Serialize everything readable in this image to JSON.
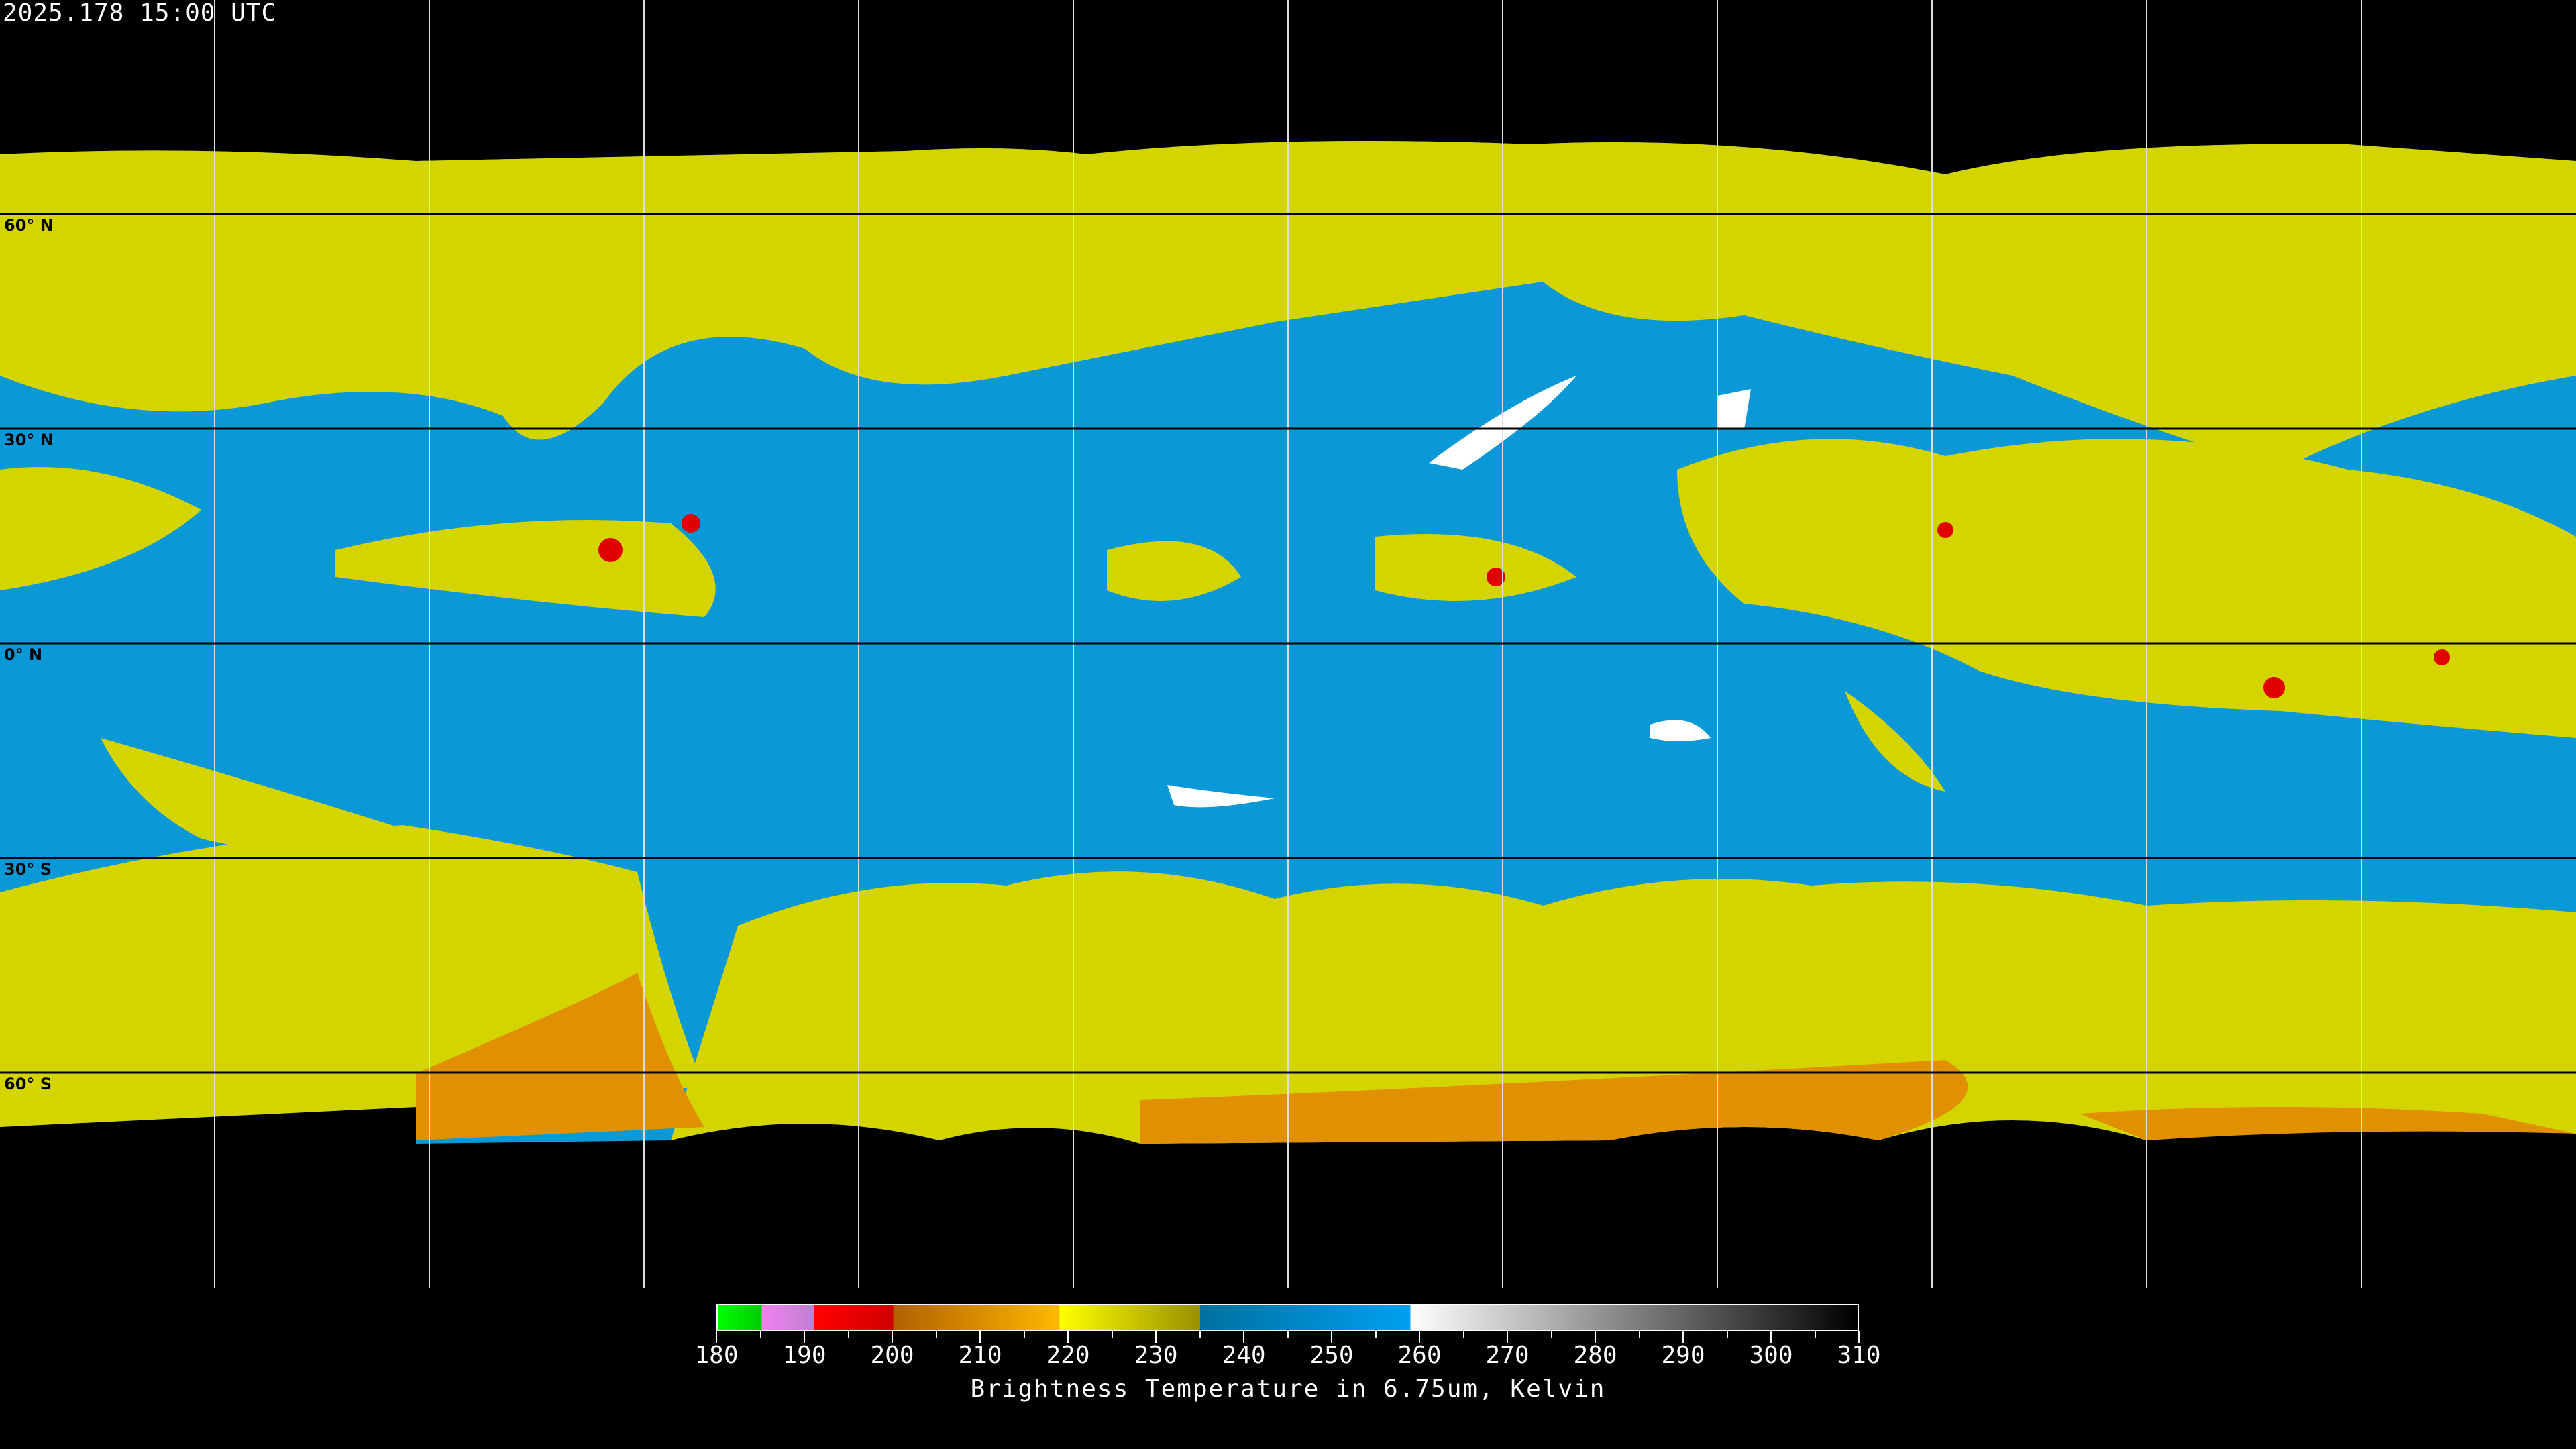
{
  "header": {
    "timestamp": "2025.178 15:00 UTC"
  },
  "map": {
    "projection": "equirectangular",
    "latitude_labels": [
      "60° N",
      "30° N",
      "0° N",
      "30° S",
      "60° S"
    ],
    "colors": {
      "background_space": "#000000",
      "warm_moist": "#0a98d6",
      "dry_yellow": "#d4d400",
      "cold_orange": "#e09000",
      "deep_red": "#e00000",
      "very_warm": "#ffffff"
    }
  },
  "colorbar": {
    "min": 180,
    "max": 310,
    "tick_labels": [
      "180",
      "190",
      "200",
      "210",
      "220",
      "230",
      "240",
      "250",
      "260",
      "270",
      "280",
      "290",
      "300",
      "310"
    ],
    "label": "Brightness Temperature in 6.75um, Kelvin",
    "segments": [
      {
        "from": 180,
        "to": 185,
        "start": "#00ff00",
        "end": "#00cc00"
      },
      {
        "from": 185,
        "to": 191,
        "start": "#f080f0",
        "end": "#c080d0"
      },
      {
        "from": 191,
        "to": 200,
        "start": "#ff0000",
        "end": "#d00000"
      },
      {
        "from": 200,
        "to": 219,
        "start": "#b06000",
        "end": "#ffb800"
      },
      {
        "from": 219,
        "to": 235,
        "start": "#ffff00",
        "end": "#989000"
      },
      {
        "from": 235,
        "to": 259,
        "start": "#0070a0",
        "end": "#00a0f0"
      },
      {
        "from": 259,
        "to": 310,
        "start": "#ffffff",
        "end": "#000000"
      }
    ]
  }
}
